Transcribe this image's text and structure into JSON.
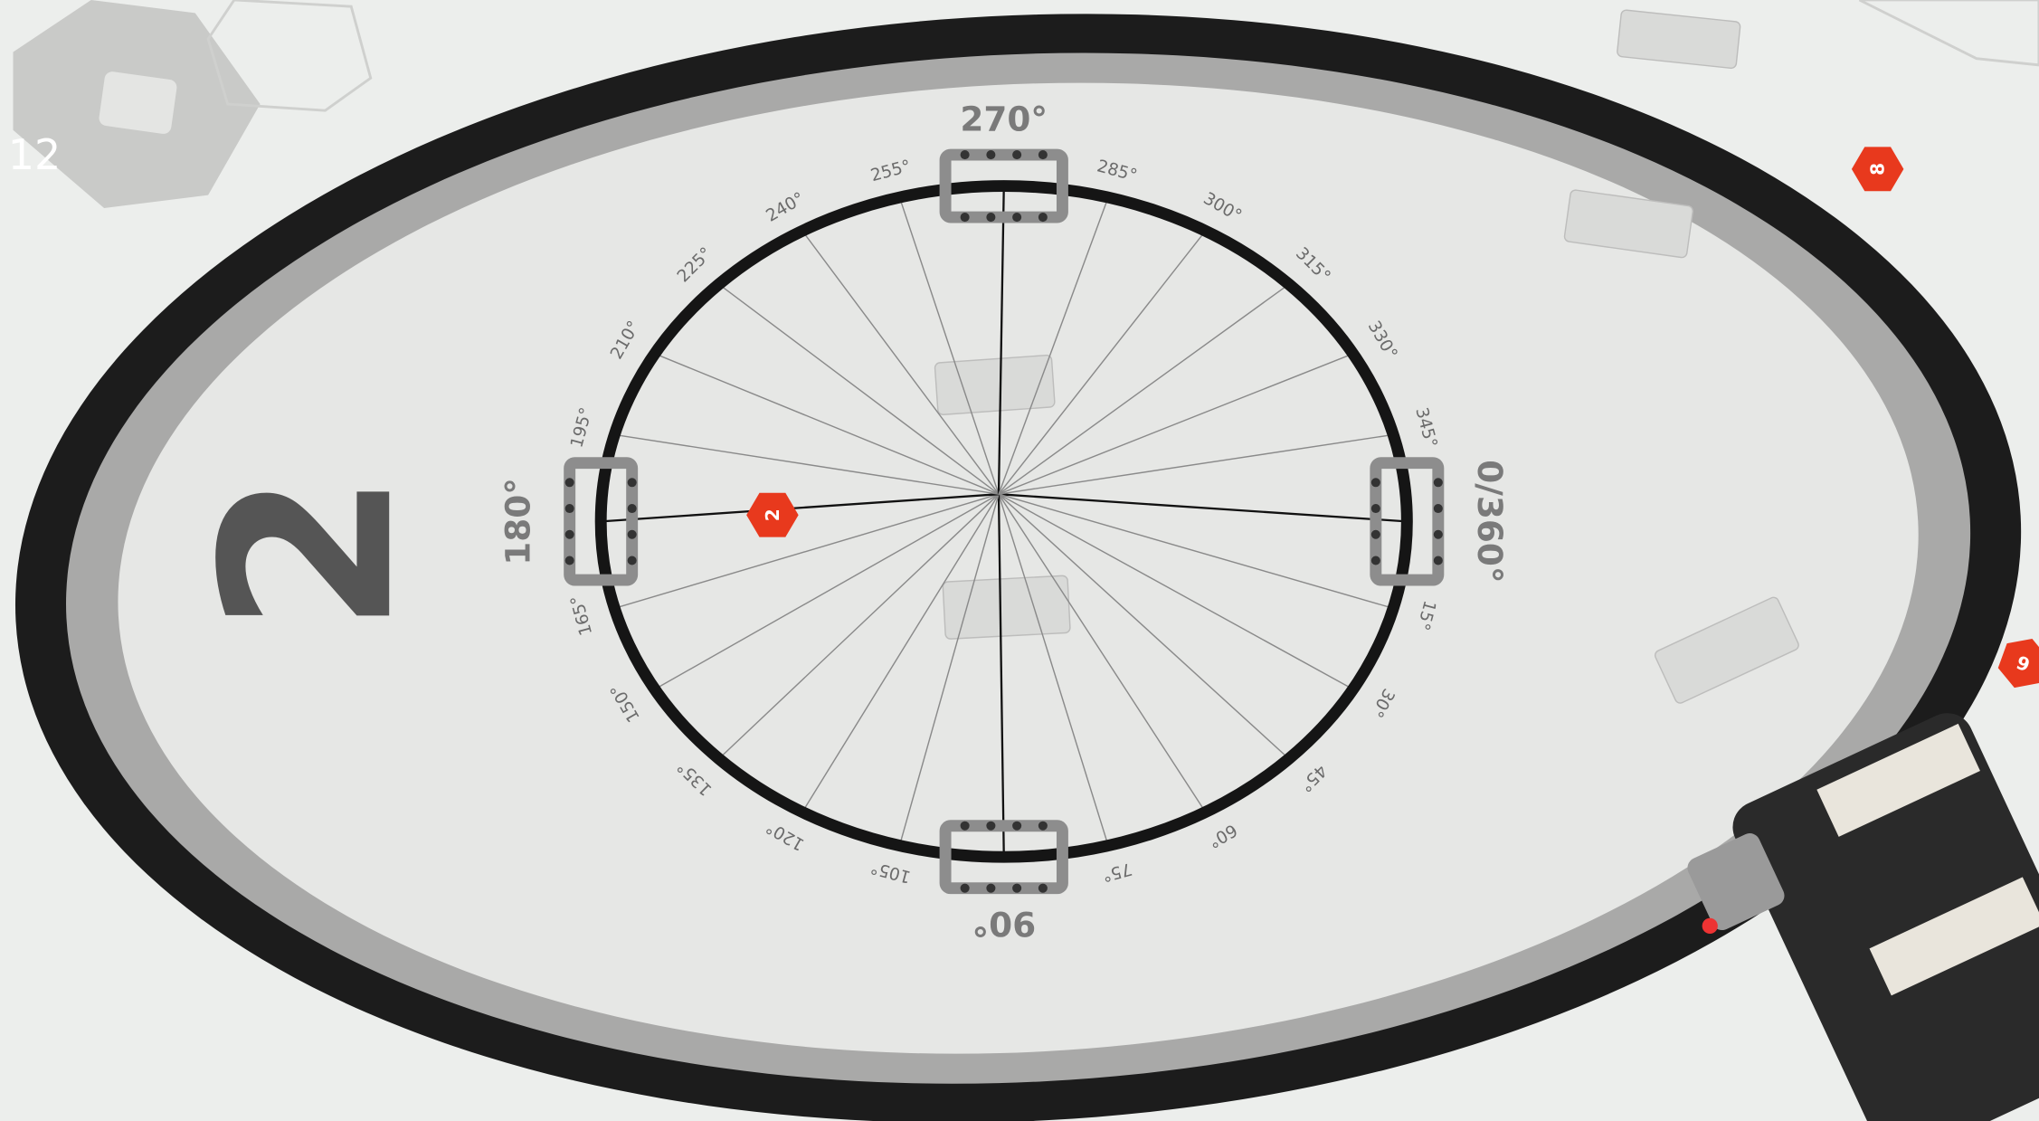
{
  "overlay_label": "12",
  "mat": {
    "zone_number": "2",
    "markers": [
      "2",
      "8",
      "6"
    ],
    "angle_labels": [
      "0/360°",
      "15°",
      "30°",
      "45°",
      "60°",
      "75°",
      "90°",
      "105°",
      "120°",
      "135°",
      "150°",
      "165°",
      "180°",
      "195°",
      "210°",
      "225°",
      "240°",
      "255°",
      "270°",
      "285°",
      "300°",
      "315°",
      "330°",
      "345°"
    ]
  }
}
